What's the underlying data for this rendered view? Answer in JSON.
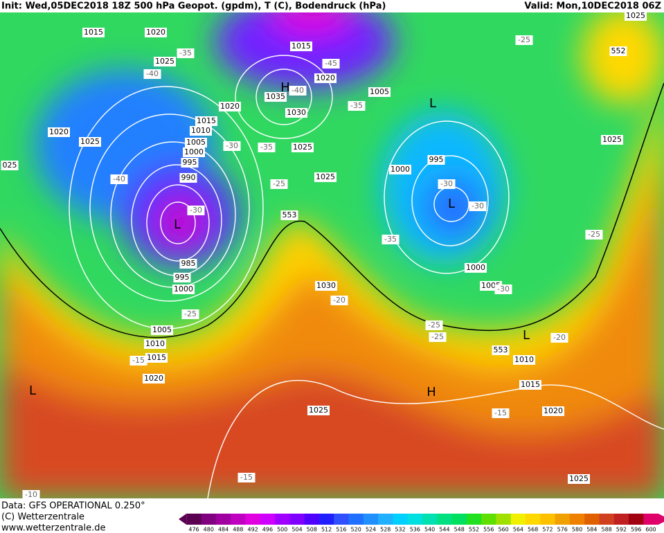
{
  "header": {
    "left": "Init: Wed,05DEC2018 18Z 500 hPa Geopot. (gpdm), T (C), Bodendruck (hPa)",
    "right": "Valid: Mon,10DEC2018 06Z"
  },
  "footer": {
    "lines": [
      "Data: GFS OPERATIONAL 0.250°",
      "(C) Wetterzentrale",
      "www.wetterzentrale.de"
    ]
  },
  "legend": {
    "labels": [
      476,
      480,
      484,
      488,
      492,
      496,
      500,
      504,
      508,
      512,
      516,
      520,
      524,
      528,
      532,
      536,
      540,
      544,
      548,
      552,
      556,
      560,
      564,
      568,
      572,
      576,
      580,
      584,
      588,
      592,
      596,
      600
    ],
    "colors": [
      "#5a0050",
      "#800080",
      "#a000a0",
      "#c000c0",
      "#e000e0",
      "#d000ff",
      "#a000ff",
      "#8000ff",
      "#5000ff",
      "#2020ff",
      "#3050ff",
      "#2070ff",
      "#2090ff",
      "#20b0ff",
      "#00d0ff",
      "#00e0e0",
      "#00e0b0",
      "#00e080",
      "#00e060",
      "#20e020",
      "#60e000",
      "#a0e000",
      "#f0f000",
      "#ffd800",
      "#ffc000",
      "#f0a000",
      "#f08000",
      "#e06000",
      "#d04020",
      "#c02020",
      "#a00010",
      "#e0006a"
    ]
  },
  "map": {
    "labels": [
      "1015",
      "1020",
      "1025",
      "-35",
      "-40",
      "1015",
      "-45",
      "1020",
      "1035",
      "H",
      "-40",
      "1005",
      "1020",
      "1030",
      "-35",
      "L",
      "1015",
      "1010",
      "1005",
      "1000",
      "995",
      "990",
      "1020",
      "1025",
      "-30",
      "-35",
      "1025",
      "025",
      "-40",
      "1025",
      "-25",
      "1000",
      "995",
      "-30",
      "L",
      "-30",
      "-30",
      "L",
      "553",
      "-35",
      "-25",
      "1025",
      "985",
      "995",
      "1000",
      "1030",
      "-20",
      "1000",
      "1005",
      "-30",
      "-25",
      "1005",
      "1010",
      "-15",
      "1015",
      "1020",
      "-25",
      "-25",
      "553",
      "1010",
      "L",
      "-20",
      "1015",
      "L",
      "H",
      "1025",
      "-15",
      "1020",
      "-15",
      "1025",
      "-10",
      "-25",
      "552",
      "1025"
    ]
  }
}
